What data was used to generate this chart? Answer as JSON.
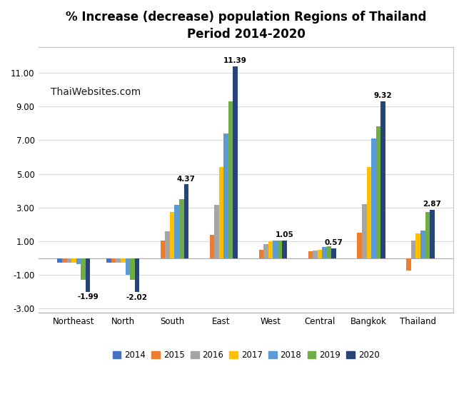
{
  "title": "% Increase (decrease) population Regions of Thailand\nPeriod 2014-2020",
  "watermark": "ThaiWebsites.com",
  "categories": [
    "Northeast",
    "North",
    "South",
    "East",
    "West",
    "Central",
    "Bangkok",
    "Thailand"
  ],
  "years": [
    "2014",
    "2015",
    "2016",
    "2017",
    "2018",
    "2019",
    "2020"
  ],
  "colors": [
    "#4472c4",
    "#ed7d31",
    "#a5a5a5",
    "#ffc000",
    "#5b9bd5",
    "#70ad47",
    "#264478"
  ],
  "data": {
    "Northeast": [
      -0.25,
      -0.25,
      -0.25,
      -0.25,
      -0.35,
      -1.3,
      -1.99
    ],
    "North": [
      -0.25,
      -0.25,
      -0.25,
      -0.25,
      -1.0,
      -1.3,
      -2.02
    ],
    "South": [
      0.0,
      1.05,
      1.6,
      2.75,
      3.15,
      3.5,
      4.37
    ],
    "East": [
      0.0,
      1.4,
      3.15,
      5.4,
      7.4,
      9.3,
      11.39
    ],
    "West": [
      0.0,
      0.5,
      0.85,
      1.0,
      1.05,
      1.05,
      1.05
    ],
    "Central": [
      0.0,
      0.4,
      0.45,
      0.5,
      0.65,
      0.7,
      0.57
    ],
    "Bangkok": [
      0.0,
      1.5,
      3.2,
      5.4,
      7.1,
      7.8,
      9.32
    ],
    "Thailand": [
      0.0,
      -0.75,
      1.05,
      1.45,
      1.65,
      2.75,
      2.87
    ]
  },
  "annotation_values": {
    "Northeast": -1.99,
    "North": -2.02,
    "South": 4.37,
    "East": 11.39,
    "West": 1.05,
    "Central": 0.57,
    "Bangkok": 9.32,
    "Thailand": 2.87
  },
  "ylim": [
    -3.25,
    12.5
  ],
  "yticks": [
    -3.0,
    -1.0,
    1.0,
    3.0,
    5.0,
    7.0,
    9.0,
    11.0
  ],
  "ytick_labels": [
    "-3.00",
    "-1.00",
    "1.00",
    "3.00",
    "5.00",
    "7.00",
    "9.00",
    "11.00"
  ],
  "background_color": "#ffffff",
  "grid_color": "#d9d9d9",
  "border_color": "#c0c0c0"
}
